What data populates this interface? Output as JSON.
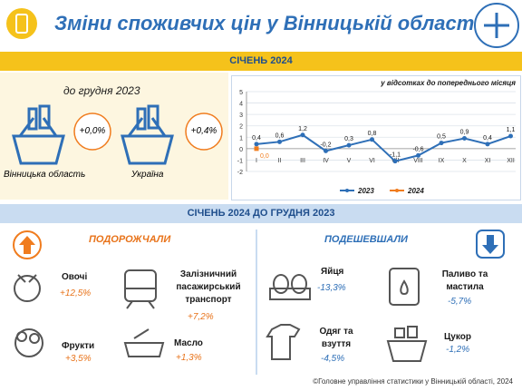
{
  "header": {
    "title": "Зміни споживчих цін у Вінницькій області"
  },
  "month_banner": "СІЧЕНЬ 2024",
  "summary": {
    "subtitle": "до грудня 2023",
    "items": [
      {
        "label": "Вінницька область",
        "value": "+0,0%"
      },
      {
        "label": "Україна",
        "value": "+0,4%"
      }
    ]
  },
  "chart_data": {
    "type": "line",
    "title": "у відсотках до попереднього місяця",
    "categories": [
      "I",
      "II",
      "III",
      "IV",
      "V",
      "VI",
      "VII",
      "VIII",
      "IX",
      "X",
      "XI",
      "XII"
    ],
    "series": [
      {
        "name": "2023",
        "color": "#2e6fb7",
        "values": [
          0.4,
          0.6,
          1.2,
          -0.2,
          0.3,
          0.8,
          -1.1,
          -0.6,
          0.5,
          0.9,
          0.4,
          1.1
        ],
        "value_labels": [
          "0,4",
          "0,6",
          "1,2",
          "-0,2",
          "0,3",
          "0,8",
          "-1,1",
          "-0,6",
          "0,5",
          "0,9",
          "0,4",
          "1,1"
        ]
      },
      {
        "name": "2024",
        "color": "#f07c1e",
        "values": [
          0.0,
          null,
          null,
          null,
          null,
          null,
          null,
          null,
          null,
          null,
          null,
          null
        ],
        "value_labels": [
          "0,0",
          null,
          null,
          null,
          null,
          null,
          null,
          null,
          null,
          null,
          null,
          null
        ]
      }
    ],
    "ylim": [
      -2,
      5
    ],
    "yticks": [
      -2,
      -1,
      0,
      1,
      2,
      3,
      4,
      5
    ],
    "grid": true,
    "legend": "bottom"
  },
  "section_banner": "СІЧЕНЬ 2024 ДО ГРУДНЯ 2023",
  "increased": {
    "title": "ПОДОРОЖЧАЛИ",
    "items": [
      {
        "label": "Овочі",
        "value": "+12,5%"
      },
      {
        "label": "Залізничний пасажирський транспорт",
        "value": "+7,2%"
      },
      {
        "label": "Фрукти",
        "value": "+3,5%"
      },
      {
        "label": "Масло",
        "value": "+1,3%"
      }
    ]
  },
  "decreased": {
    "title": "ПОДЕШЕВШАЛИ",
    "items": [
      {
        "label": "Яйця",
        "value": "-13,3%"
      },
      {
        "label": "Паливо та мастила",
        "value": "-5,7%"
      },
      {
        "label": "Одяг та взуття",
        "value": "-4,5%"
      },
      {
        "label": "Цукор",
        "value": "-1,2%"
      }
    ]
  },
  "footer": "©Головне управління статистики у  Вінницькій області, 2024"
}
